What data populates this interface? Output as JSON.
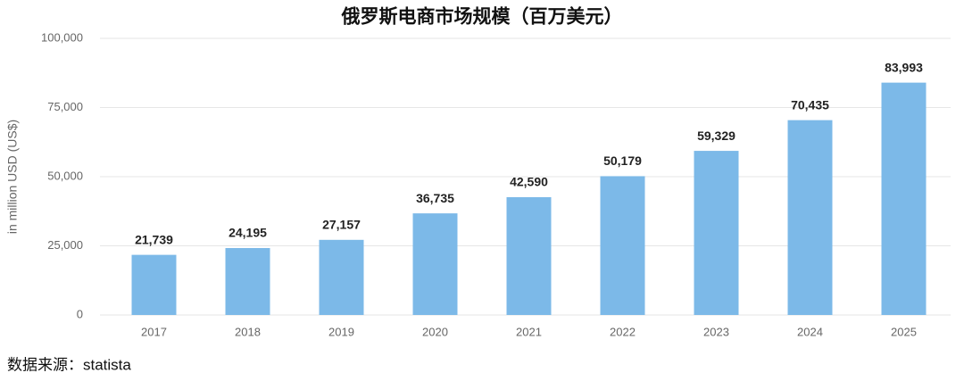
{
  "chart_data": {
    "type": "bar",
    "title": "俄罗斯电商市场规模（百万美元）",
    "y_axis_label": "in million USD (US$)",
    "source": "数据来源：statista",
    "categories": [
      "2017",
      "2018",
      "2019",
      "2020",
      "2021",
      "2022",
      "2023",
      "2024",
      "2025"
    ],
    "values": [
      21739,
      24195,
      27157,
      36735,
      42590,
      50179,
      59329,
      70435,
      83993
    ],
    "value_labels": [
      "21,739",
      "24,195",
      "27,157",
      "36,735",
      "42,590",
      "50,179",
      "59,329",
      "70,435",
      "83,993"
    ],
    "color": "#7cb9e8",
    "ylim": [
      0,
      100000
    ],
    "yticks": [
      0,
      {
        "value": 25000,
        "label": "25,000"
      },
      {
        "value": 50000,
        "label": "50,000"
      },
      {
        "value": 75000,
        "label": "75,000"
      },
      {
        "value": 100000,
        "label": "100,000"
      }
    ],
    "grid": true
  }
}
